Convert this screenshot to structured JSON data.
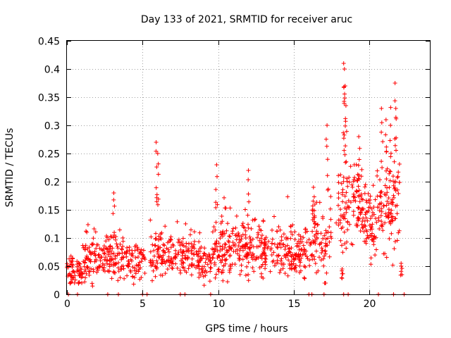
{
  "chart_data": {
    "type": "scatter",
    "title": "Day 133 of 2021, SRMTID for receiver aruc",
    "xlabel": "GPS time / hours",
    "ylabel": "SRMTID / TECUs",
    "xlim": [
      0,
      24
    ],
    "ylim": [
      0,
      0.45
    ],
    "xticks": [
      0,
      5,
      10,
      15,
      20
    ],
    "xtick_labels": [
      "0",
      "5",
      "10",
      "15",
      "20"
    ],
    "yticks": [
      0,
      0.05,
      0.1,
      0.15,
      0.2,
      0.25,
      0.3,
      0.35,
      0.4,
      0.45
    ],
    "ytick_labels": [
      "0",
      "0.05",
      "0.1",
      "0.15",
      "0.2",
      "0.25",
      "0.3",
      "0.35",
      "0.4",
      "0.45"
    ],
    "grid": true,
    "marker": "+",
    "color": "#ff0000",
    "series": [
      {
        "name": "SRMTID",
        "segments": [
          {
            "x_range": [
              0.0,
              1.0
            ],
            "base": 0.035,
            "spread": 0.025,
            "n": 60
          },
          {
            "x_range": [
              1.0,
              2.5
            ],
            "base": 0.06,
            "spread": 0.035,
            "n": 90
          },
          {
            "x_range": [
              2.5,
              4.0
            ],
            "base": 0.065,
            "spread": 0.04,
            "n": 90
          },
          {
            "x_range": [
              4.0,
              5.2
            ],
            "base": 0.06,
            "spread": 0.03,
            "n": 60
          },
          {
            "x_range": [
              5.5,
              7.0
            ],
            "base": 0.07,
            "spread": 0.04,
            "n": 90
          },
          {
            "x_range": [
              7.0,
              8.5
            ],
            "base": 0.07,
            "spread": 0.04,
            "n": 80
          },
          {
            "x_range": [
              8.5,
              9.6
            ],
            "base": 0.055,
            "spread": 0.03,
            "n": 60
          },
          {
            "x_range": [
              9.6,
              11.0
            ],
            "base": 0.08,
            "spread": 0.05,
            "n": 100
          },
          {
            "x_range": [
              11.0,
              13.0
            ],
            "base": 0.08,
            "spread": 0.045,
            "n": 120
          },
          {
            "x_range": [
              13.0,
              15.0
            ],
            "base": 0.075,
            "spread": 0.04,
            "n": 110
          },
          {
            "x_range": [
              15.0,
              16.2
            ],
            "base": 0.07,
            "spread": 0.04,
            "n": 70
          },
          {
            "x_range": [
              16.2,
              17.5
            ],
            "base": 0.1,
            "spread": 0.06,
            "n": 70
          },
          {
            "x_range": [
              17.8,
              19.5
            ],
            "base": 0.16,
            "spread": 0.07,
            "n": 100
          },
          {
            "x_range": [
              19.5,
              20.5
            ],
            "base": 0.13,
            "spread": 0.06,
            "n": 70
          },
          {
            "x_range": [
              20.5,
              22.0
            ],
            "base": 0.16,
            "spread": 0.08,
            "n": 100
          }
        ],
        "peaks": [
          {
            "x": 3.1,
            "y": 0.18
          },
          {
            "x": 5.9,
            "y": 0.27
          },
          {
            "x": 6.0,
            "y": 0.25
          },
          {
            "x": 9.9,
            "y": 0.23
          },
          {
            "x": 12.0,
            "y": 0.22
          },
          {
            "x": 17.2,
            "y": 0.3
          },
          {
            "x": 18.3,
            "y": 0.41
          },
          {
            "x": 18.35,
            "y": 0.4
          },
          {
            "x": 18.4,
            "y": 0.37
          },
          {
            "x": 18.45,
            "y": 0.335
          },
          {
            "x": 19.3,
            "y": 0.28
          },
          {
            "x": 20.8,
            "y": 0.33
          },
          {
            "x": 21.1,
            "y": 0.31
          },
          {
            "x": 21.7,
            "y": 0.375
          },
          {
            "x": 21.75,
            "y": 0.33
          },
          {
            "x": 16.3,
            "y": 0.19
          },
          {
            "x": 16.4,
            "y": 0.16
          },
          {
            "x": 19.0,
            "y": 0.23
          },
          {
            "x": 21.4,
            "y": 0.3
          },
          {
            "x": 18.2,
            "y": 0.045
          },
          {
            "x": 17.1,
            "y": 0.02
          },
          {
            "x": 22.1,
            "y": 0.055
          }
        ],
        "zero_points": [
          0.1,
          0.7,
          2.7,
          3.4,
          5.0,
          5.3,
          7.5,
          7.8,
          9.5,
          16.0,
          16.2,
          17.0,
          18.3,
          18.6,
          20.6,
          21.6,
          22.3
        ]
      }
    ]
  }
}
